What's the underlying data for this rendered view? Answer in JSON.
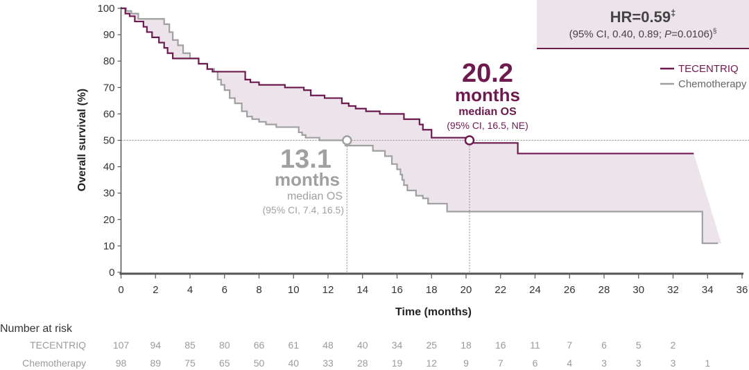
{
  "chart_data": {
    "type": "line",
    "xlabel": "Time (months)",
    "ylabel": "Overall survival (%)",
    "xlim": [
      0,
      36
    ],
    "ylim": [
      0,
      100
    ],
    "x_ticks": [
      0,
      2,
      4,
      6,
      8,
      10,
      12,
      14,
      16,
      18,
      20,
      22,
      24,
      26,
      28,
      30,
      32,
      34,
      36
    ],
    "y_ticks": [
      0,
      10,
      20,
      30,
      40,
      50,
      60,
      70,
      80,
      90,
      100
    ],
    "reference_line_y": 50,
    "legend_position": "right",
    "colors": {
      "tecentriq": "#6d1a4f",
      "chemotherapy": "#a0a0a0",
      "fill": "#ede3ea",
      "axis": "#555555"
    },
    "series": [
      {
        "name": "TECENTRIQ",
        "key": "tecentriq",
        "x": [
          0,
          0.25,
          0.25,
          0.5,
          0.5,
          0.8,
          0.8,
          1.3,
          1.3,
          1.5,
          1.5,
          1.8,
          1.8,
          2.2,
          2.2,
          2.5,
          2.5,
          2.7,
          2.7,
          3.0,
          3.0,
          4.5,
          4.5,
          5.0,
          5.0,
          5.3,
          5.3,
          7.2,
          7.2,
          7.5,
          7.5,
          8.0,
          8.0,
          9.5,
          9.5,
          10.6,
          10.6,
          11.0,
          11.0,
          11.8,
          11.8,
          12.8,
          12.8,
          13.2,
          13.2,
          13.6,
          13.6,
          14.2,
          14.2,
          15.0,
          15.0,
          16.4,
          16.4,
          17.3,
          17.3,
          17.5,
          17.5,
          18.0,
          18.0,
          20.0,
          20.0,
          23.0,
          23.0,
          33.2
        ],
        "y": [
          100,
          100,
          98,
          98,
          97,
          97,
          95,
          95,
          93,
          93,
          91,
          91,
          89,
          89,
          87,
          87,
          85,
          85,
          83,
          83,
          81,
          81,
          79,
          79,
          77,
          77,
          76,
          76,
          73,
          73,
          72,
          72,
          71,
          71,
          70,
          70,
          69,
          69,
          67,
          67,
          66,
          66,
          64,
          64,
          63,
          63,
          62,
          62,
          61,
          61,
          60,
          60,
          58,
          58,
          56,
          56,
          54,
          54,
          51,
          51,
          49,
          49,
          45,
          45
        ]
      },
      {
        "name": "Chemotherapy",
        "key": "chemotherapy",
        "x": [
          0,
          0.3,
          0.3,
          0.6,
          0.6,
          1.0,
          1.0,
          2.5,
          2.5,
          2.8,
          2.8,
          3.0,
          3.0,
          3.3,
          3.3,
          3.6,
          3.6,
          4.0,
          4.0,
          4.5,
          4.5,
          5.0,
          5.0,
          5.4,
          5.4,
          5.6,
          5.6,
          5.8,
          5.8,
          6.0,
          6.0,
          6.3,
          6.3,
          6.6,
          6.6,
          7.0,
          7.0,
          7.3,
          7.3,
          7.6,
          7.6,
          8.0,
          8.0,
          8.4,
          8.4,
          9.0,
          9.0,
          10.3,
          10.3,
          10.5,
          10.5,
          10.7,
          10.7,
          11.0,
          11.0,
          11.5,
          11.5,
          13.0,
          13.0,
          14.6,
          14.6,
          15.3,
          15.3,
          15.7,
          15.7,
          16.0,
          16.0,
          16.2,
          16.2,
          16.3,
          16.3,
          16.4,
          16.4,
          16.6,
          16.6,
          17.1,
          17.1,
          17.5,
          17.5,
          17.8,
          17.8,
          18.9,
          18.9,
          33.7,
          33.7,
          34.6
        ],
        "y": [
          100,
          100,
          99,
          99,
          98,
          98,
          96,
          96,
          94,
          94,
          91,
          91,
          88,
          88,
          86,
          86,
          83,
          83,
          81,
          81,
          79,
          79,
          77,
          77,
          76,
          76,
          73,
          73,
          71,
          71,
          69,
          69,
          66,
          66,
          64,
          64,
          61,
          61,
          59,
          59,
          58,
          58,
          57,
          57,
          56,
          56,
          55,
          55,
          53,
          53,
          52,
          52,
          51,
          51,
          51,
          51,
          50,
          50,
          48,
          48,
          46,
          46,
          44,
          44,
          41,
          41,
          39,
          39,
          37,
          37,
          35,
          35,
          33,
          33,
          31,
          31,
          29,
          29,
          28,
          28,
          26,
          26,
          23,
          23,
          11,
          11
        ]
      }
    ],
    "tail_shading": {
      "tecentriq_drop_x": [
        33.2,
        34.8
      ],
      "tecentriq_drop_y": [
        45,
        11
      ]
    },
    "median_markers": [
      {
        "key": "chemotherapy",
        "x": 13.1,
        "y": 50
      },
      {
        "key": "tecentriq",
        "x": 20.2,
        "y": 50
      }
    ],
    "annotations": {
      "hr_title": "HR=0.59",
      "hr_title_mark": "‡",
      "hr_ci_prefix": "(95% CI, 0.40, 0.89; ",
      "hr_p_italic": "P",
      "hr_p_value": "=0.0106)",
      "hr_ci_mark": "§",
      "tecentriq_median_value": "20.2",
      "tecentriq_median_unit": "months",
      "tecentriq_median_label": "median OS",
      "tecentriq_median_ci": "(95% CI, 16.5, NE)",
      "chemo_median_value": "13.1",
      "chemo_median_unit": "months",
      "chemo_median_label": "median OS",
      "chemo_median_ci": "(95% CI, 7.4, 16.5)"
    },
    "risk_table": {
      "title": "Number at risk",
      "times": [
        0,
        2,
        4,
        6,
        8,
        10,
        12,
        14,
        16,
        18,
        20,
        22,
        24,
        26,
        28,
        30,
        32,
        34
      ],
      "rows": [
        {
          "label": "TECENTRIQ",
          "values": [
            "107",
            "94",
            "85",
            "80",
            "66",
            "61",
            "48",
            "40",
            "34",
            "25",
            "18",
            "16",
            "11",
            "7",
            "6",
            "5",
            "2",
            ""
          ]
        },
        {
          "label": "Chemotherapy",
          "values": [
            "98",
            "89",
            "75",
            "65",
            "50",
            "40",
            "33",
            "28",
            "19",
            "12",
            "9",
            "7",
            "6",
            "4",
            "3",
            "3",
            "3",
            "1"
          ]
        }
      ]
    }
  }
}
